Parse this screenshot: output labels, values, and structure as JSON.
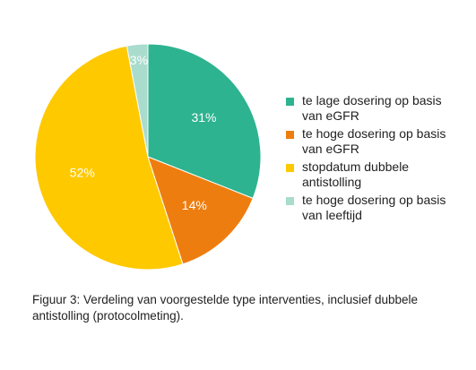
{
  "caption": "Figuur 3: Verdeling van voorgestelde type interventies, inclusief dubbele antistolling (protocolmeting).",
  "chart_data": {
    "type": "pie",
    "title": "",
    "legend_position": "right",
    "slices": [
      {
        "label": "te lage dosering op basis van eGFR",
        "value": 31,
        "value_label": "31%",
        "color": "#2db38f"
      },
      {
        "label": "te hoge dosering op basis van eGFR",
        "value": 14,
        "value_label": "14%",
        "color": "#ee7d0f"
      },
      {
        "label": "stopdatum dubbele antistolling",
        "value": 52,
        "value_label": "52%",
        "color": "#ffc900"
      },
      {
        "label": "te hoge dosering op basis van leeftijd",
        "value": 3,
        "value_label": "3%",
        "color": "#a9dccd"
      }
    ]
  }
}
